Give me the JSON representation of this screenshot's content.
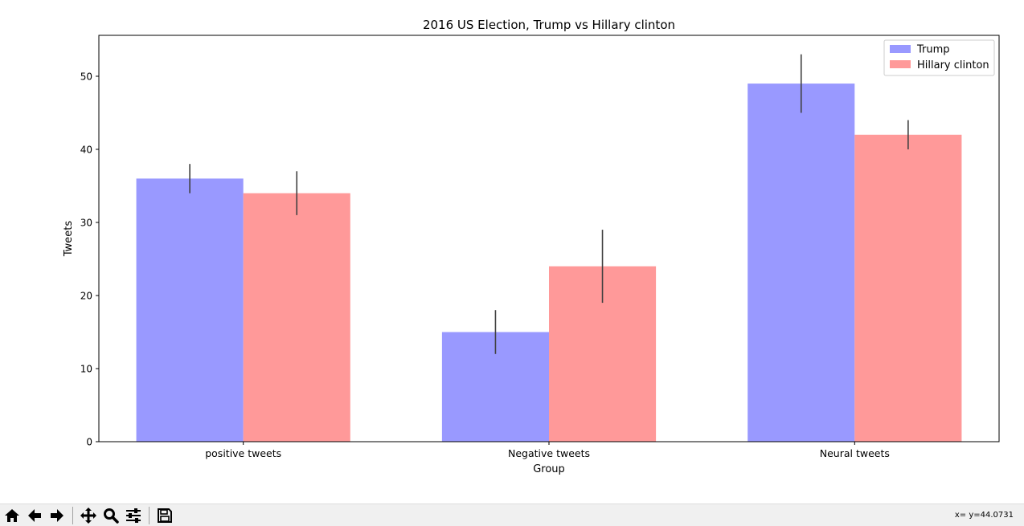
{
  "chart_data": {
    "type": "bar",
    "title": "2016 US Election, Trump vs Hillary clinton",
    "xlabel": "Group",
    "ylabel": "Tweets",
    "categories": [
      "positive tweets",
      "Negative tweets",
      "Neural tweets"
    ],
    "series": [
      {
        "name": "Trump",
        "values": [
          36,
          15,
          49
        ],
        "errors": [
          2,
          3,
          4
        ],
        "color": "#9999ff"
      },
      {
        "name": "Hillary clinton",
        "values": [
          34,
          24,
          42
        ],
        "errors": [
          3,
          5,
          2
        ],
        "color": "#ff9999"
      }
    ],
    "ylim": [
      0,
      55.6
    ],
    "yticks": [
      0,
      10,
      20,
      30,
      40,
      50
    ],
    "grid": false,
    "legend_position": "top-right",
    "error_bar_color": "#404040"
  },
  "toolbar": {
    "buttons": [
      {
        "name": "home-button",
        "icon": "home-icon"
      },
      {
        "name": "back-button",
        "icon": "arrow-left-icon"
      },
      {
        "name": "forward-button",
        "icon": "arrow-right-icon"
      },
      {
        "name": "pan-button",
        "icon": "move-icon"
      },
      {
        "name": "zoom-button",
        "icon": "magnifier-icon"
      },
      {
        "name": "configure-subplots-button",
        "icon": "sliders-icon"
      },
      {
        "name": "save-button",
        "icon": "floppy-disk-icon"
      }
    ],
    "coordinates": "x= y=44.0731"
  }
}
